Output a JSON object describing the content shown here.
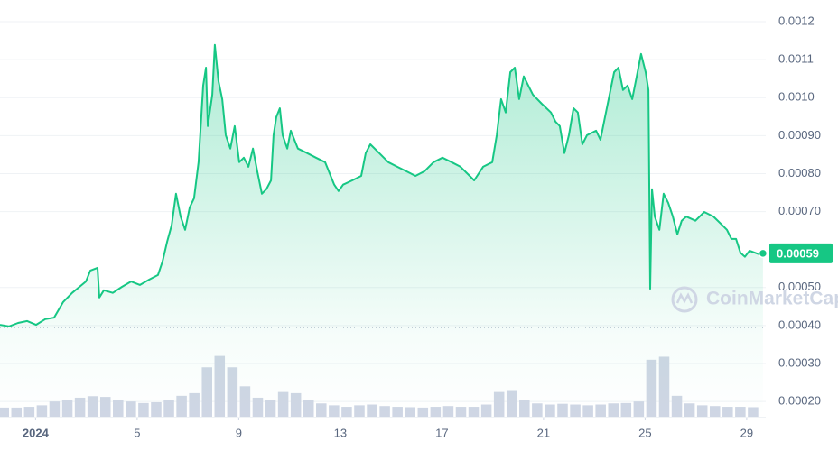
{
  "chart_data": {
    "type": "line",
    "watermark": "CoinMarketCap",
    "xlim": [
      -0.4,
      29.75
    ],
    "ylim": [
      0.00016,
      0.001257
    ],
    "xticks": [
      {
        "value": 1,
        "label": "2024"
      },
      5,
      9,
      13,
      17,
      21,
      25,
      29
    ],
    "yticks": [
      0.0012,
      0.0011,
      {
        "value": 0.001,
        "label": "0.0010"
      },
      {
        "value": 0.0009,
        "label": "0.00090"
      },
      {
        "value": 0.0008,
        "label": "0.00080"
      },
      {
        "value": 0.0007,
        "label": "0.00070"
      },
      {
        "value": 0.0005,
        "label": "0.00050"
      },
      {
        "value": 0.0004,
        "label": "0.00040"
      },
      {
        "value": 0.0003,
        "label": "0.00030"
      },
      {
        "value": 0.0002,
        "label": "0.00020"
      }
    ],
    "grid": true,
    "current_price": 0.00059,
    "series": [
      {
        "color": "#16c784",
        "x": [
          -0.4,
          -0.04,
          0.31,
          0.67,
          1.02,
          1.38,
          1.73,
          2.09,
          2.44,
          2.73,
          2.98,
          3.16,
          3.44,
          3.51,
          3.69,
          4.04,
          4.4,
          4.76,
          5.11,
          5.47,
          5.82,
          6.0,
          6.18,
          6.36,
          6.53,
          6.71,
          6.89,
          7.07,
          7.24,
          7.42,
          7.6,
          7.71,
          7.78,
          7.96,
          8.06,
          8.2,
          8.35,
          8.49,
          8.67,
          8.84,
          9.02,
          9.2,
          9.38,
          9.56,
          9.73,
          9.91,
          10.09,
          10.27,
          10.37,
          10.48,
          10.62,
          10.73,
          10.91,
          11.05,
          11.33,
          11.69,
          12.04,
          12.4,
          12.76,
          12.93,
          13.11,
          13.47,
          13.82,
          14.0,
          14.18,
          14.53,
          14.89,
          15.24,
          15.6,
          15.96,
          16.31,
          16.67,
          17.02,
          17.38,
          17.73,
          18.09,
          18.27,
          18.62,
          18.98,
          19.16,
          19.33,
          19.51,
          19.69,
          19.87,
          20.04,
          20.22,
          20.4,
          20.58,
          20.93,
          21.29,
          21.47,
          21.64,
          21.82,
          22.0,
          22.18,
          22.35,
          22.53,
          22.71,
          23.07,
          23.24,
          23.42,
          23.78,
          23.95,
          24.13,
          24.31,
          24.49,
          24.67,
          24.84,
          25.02,
          25.13,
          25.2,
          25.27,
          25.38,
          25.56,
          25.73,
          25.91,
          26.09,
          26.27,
          26.44,
          26.62,
          26.98,
          27.33,
          27.69,
          28.04,
          28.22,
          28.4,
          28.58,
          28.75,
          28.93,
          29.11,
          29.47,
          29.64
        ],
        "values": [
          0.000402,
          0.000398,
          0.000407,
          0.000412,
          0.000402,
          0.000417,
          0.000421,
          0.000462,
          0.000486,
          0.000502,
          0.000516,
          0.000545,
          0.000552,
          0.000474,
          0.000493,
          0.000486,
          0.000502,
          0.000516,
          0.000507,
          0.000521,
          0.000533,
          0.000569,
          0.000621,
          0.000664,
          0.000747,
          0.000687,
          0.000652,
          0.000711,
          0.000735,
          0.00083,
          0.001032,
          0.001079,
          0.000925,
          0.001008,
          0.001139,
          0.001044,
          0.000996,
          0.000901,
          0.000866,
          0.000925,
          0.00083,
          0.000842,
          0.000818,
          0.000866,
          0.000806,
          0.000747,
          0.000759,
          0.000782,
          0.000901,
          0.000949,
          0.000972,
          0.000901,
          0.000866,
          0.000913,
          0.000866,
          0.000854,
          0.000842,
          0.00083,
          0.000771,
          0.000754,
          0.000771,
          0.000782,
          0.000794,
          0.000854,
          0.000877,
          0.000854,
          0.00083,
          0.000818,
          0.000806,
          0.000794,
          0.000806,
          0.00083,
          0.000842,
          0.00083,
          0.000818,
          0.000794,
          0.000782,
          0.000818,
          0.00083,
          0.000901,
          0.000996,
          0.000961,
          0.001067,
          0.001079,
          0.000996,
          0.001056,
          0.001032,
          0.001008,
          0.000984,
          0.000961,
          0.000937,
          0.000925,
          0.000854,
          0.000901,
          0.000972,
          0.000961,
          0.000877,
          0.000901,
          0.000913,
          0.000889,
          0.000949,
          0.001067,
          0.001079,
          0.00102,
          0.001032,
          0.000996,
          0.001056,
          0.001115,
          0.001067,
          0.00102,
          0.000497,
          0.000759,
          0.000687,
          0.000652,
          0.000747,
          0.000723,
          0.000687,
          0.00064,
          0.000676,
          0.000687,
          0.000676,
          0.000699,
          0.000687,
          0.000664,
          0.000652,
          0.000628,
          0.000628,
          0.000592,
          0.000581,
          0.000597,
          0.000588,
          0.00059
        ]
      }
    ],
    "volume": {
      "color": "#cfd6e4",
      "x": [
        -0.25,
        0.25,
        0.75,
        1.25,
        1.75,
        2.25,
        2.75,
        3.25,
        3.75,
        4.25,
        4.75,
        5.25,
        5.75,
        6.25,
        6.75,
        7.25,
        7.75,
        8.25,
        8.75,
        9.25,
        9.75,
        10.25,
        10.75,
        11.25,
        11.75,
        12.25,
        12.75,
        13.25,
        13.75,
        14.25,
        14.75,
        15.25,
        15.75,
        16.25,
        16.75,
        17.25,
        17.75,
        18.25,
        18.75,
        19.25,
        19.75,
        20.25,
        20.75,
        21.25,
        21.75,
        22.25,
        22.75,
        23.25,
        23.75,
        24.25,
        24.75,
        25.25,
        25.75,
        26.25,
        26.75,
        27.25,
        27.75,
        28.25,
        28.75,
        29.25
      ],
      "values": [
        0.000184,
        0.000184,
        0.000186,
        0.00019,
        0.0002,
        0.000205,
        0.00021,
        0.000214,
        0.000212,
        0.000205,
        0.0002,
        0.000196,
        0.000198,
        0.000205,
        0.000215,
        0.000222,
        0.00029,
        0.00032,
        0.00029,
        0.00024,
        0.00021,
        0.000205,
        0.000225,
        0.000222,
        0.000205,
        0.000195,
        0.00019,
        0.000186,
        0.00019,
        0.000192,
        0.000188,
        0.000186,
        0.000185,
        0.000184,
        0.000186,
        0.000188,
        0.000186,
        0.000186,
        0.000192,
        0.000225,
        0.00023,
        0.000205,
        0.000195,
        0.000192,
        0.000194,
        0.000192,
        0.00019,
        0.000192,
        0.000195,
        0.000196,
        0.0002,
        0.00031,
        0.000318,
        0.000215,
        0.000195,
        0.00019,
        0.000188,
        0.000186,
        0.000186,
        0.000185
      ]
    }
  }
}
